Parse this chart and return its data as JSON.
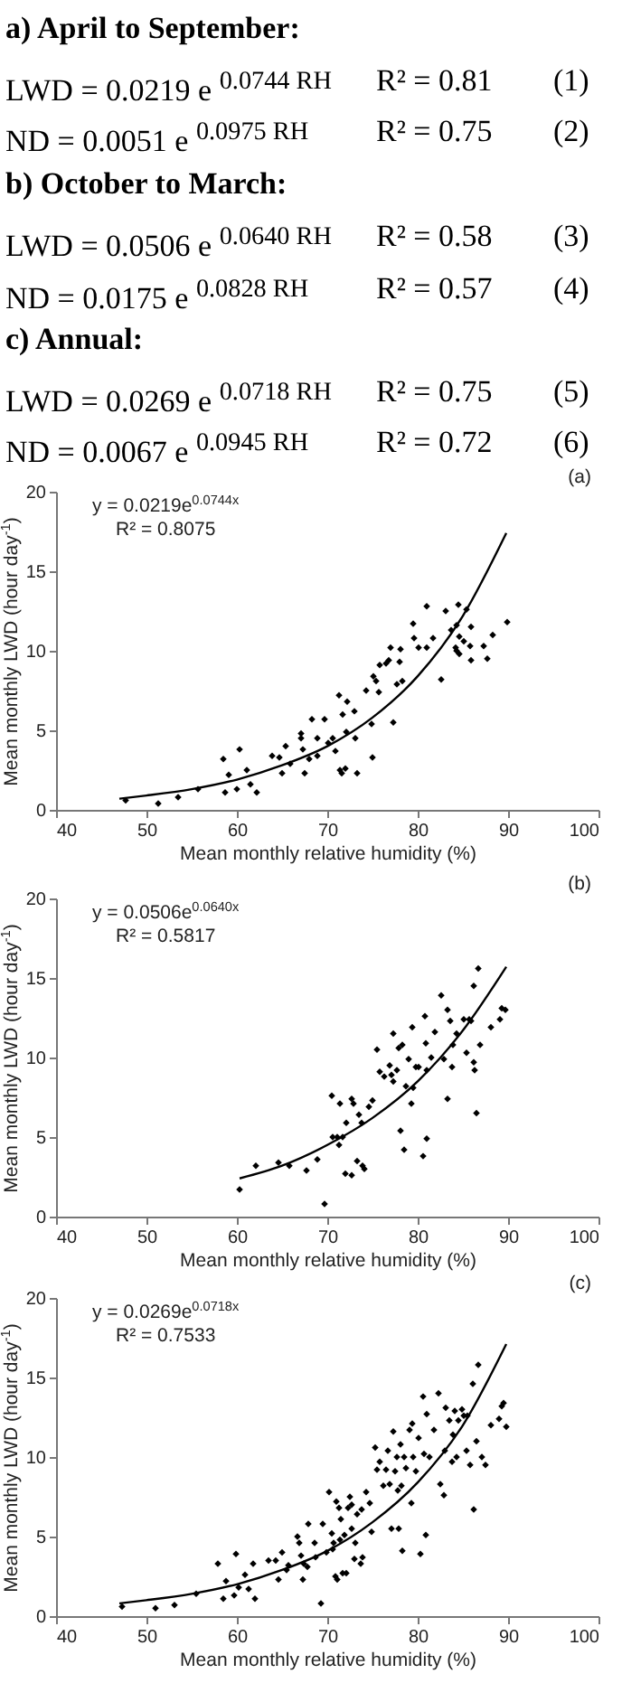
{
  "chart_data": [
    {
      "type": "other",
      "annotations": [
        "a) April to September:",
        "LWD = 0.0219 e $^{0.0744 RH}$",
        "R² = 0.81",
        "(1)",
        "ND = 0.0051 e $^{0.0975 RH}$",
        "R² = 0.75",
        "(2)",
        "b) October to March:",
        "LWD = 0.0506 e $^{0.0640 RH}$",
        "R² = 0.58",
        "(3)",
        "ND = 0.0175 e $^{0.0828 RH}$",
        "R² = 0.57",
        "(4)",
        "c) Annual:",
        "LWD = 0.0269 e $^{0.0718 RH}$",
        "R² = 0.75",
        "(5)",
        "ND = 0.0067 e $^{0.0945 RH}$",
        "R² = 0.72",
        "(6)"
      ]
    },
    {
      "type": "scatter",
      "xlabel": "Mean monthly relative humidity (%)",
      "ylabel": "Mean monthly LWD (hour day$^{-1}$)",
      "xlim": [
        40,
        100
      ],
      "xticks": [
        40,
        50,
        60,
        70,
        80,
        90,
        100
      ],
      "ylim": [
        0,
        20
      ],
      "yticks": [
        0,
        5,
        10,
        15,
        20
      ],
      "marker": "diamond",
      "annotations": [
        "y = 0.0219e$^{0.0744x}$",
        "R² = 0.8075",
        "(a)"
      ],
      "series": [
        {
          "type": "scatter",
          "color": "#000000",
          "x": [
            47.7,
            51.3,
            53.5,
            55.7,
            58.5,
            58.7,
            59.1,
            60,
            60.3,
            61.1,
            61.5,
            62.2,
            63.9,
            64.7,
            65,
            65.4,
            65.9,
            67.1,
            67.1,
            67.3,
            67.5,
            68,
            68.3,
            68.9,
            68.9,
            69.7,
            70.1,
            70.6,
            70.9,
            71.3,
            71.4,
            71.6,
            71.7,
            72,
            72.1,
            72.2,
            73,
            73.1,
            73.3,
            74.3,
            74.9,
            75,
            75.1,
            75.4,
            75.7,
            75.8,
            76.5,
            76.8,
            77,
            77.3,
            77.7,
            78,
            78.1,
            78.3,
            79.5,
            79.6,
            80.1,
            81,
            81,
            81.7,
            82.6,
            83.1,
            83.7,
            84.3,
            84.5,
            84.6,
            84.2,
            84.3,
            84.6,
            85.1,
            85.4,
            85.8,
            85.9,
            85.9,
            87.3,
            87.7,
            88.3,
            89.9
          ],
          "values": [
            0.6,
            0.4,
            0.8,
            1.3,
            3.2,
            1.1,
            2.2,
            1.3,
            3.8,
            2.5,
            1.6,
            1.1,
            3.4,
            3.3,
            2.3,
            4.0,
            2.9,
            4.5,
            4.8,
            3.8,
            2.3,
            3.2,
            5.7,
            4.5,
            3.4,
            5.7,
            4.2,
            4.5,
            3.7,
            7.2,
            2.5,
            2.3,
            6.0,
            2.6,
            4.9,
            6.8,
            6.2,
            4.5,
            2.3,
            7.5,
            5.4,
            3.3,
            8.4,
            8.1,
            7.4,
            9.1,
            9.2,
            9.4,
            10.2,
            5.5,
            7.9,
            9.3,
            10.1,
            8.1,
            11.7,
            10.8,
            10.2,
            12.8,
            10.2,
            10.8,
            8.2,
            12.5,
            11.3,
            11.6,
            12.9,
            10.9,
            10.2,
            10,
            9.8,
            10.6,
            12.6,
            10.3,
            11.5,
            9.4,
            10.3,
            9.5,
            11,
            11.8
          ]
        },
        {
          "type": "line",
          "color": "#000000",
          "marker": "none",
          "x": [
            47,
            50,
            55,
            60,
            65,
            70,
            75,
            80,
            85,
            89.8
          ],
          "values": [
            0.7,
            0.9,
            1.3,
            1.9,
            2.8,
            4.0,
            5.8,
            8.4,
            12.2,
            17.4
          ]
        }
      ]
    },
    {
      "type": "scatter",
      "xlabel": "Mean monthly relative humidity (%)",
      "ylabel": "Mean monthly LWD (hour day$^{-1}$)",
      "xlim": [
        40,
        100
      ],
      "xticks": [
        40,
        50,
        60,
        70,
        80,
        90,
        100
      ],
      "ylim": [
        0,
        20
      ],
      "yticks": [
        0,
        5,
        10,
        15,
        20
      ],
      "marker": "diamond",
      "annotations": [
        "y = 0.0506e$^{0.0640x}$",
        "R² = 0.5817",
        "(b)"
      ],
      "series": [
        {
          "type": "scatter",
          "color": "#000000",
          "x": [
            60.3,
            62.1,
            64.6,
            65.8,
            67.7,
            68.9,
            69.7,
            70.5,
            70.6,
            71.1,
            71.3,
            71.4,
            71.7,
            72,
            72.1,
            72.7,
            72.7,
            72.9,
            73.3,
            73.5,
            73.8,
            73.9,
            74.1,
            74.6,
            75,
            75.5,
            75.8,
            76.3,
            76.9,
            77.1,
            77.3,
            77.3,
            77.7,
            77.9,
            78.1,
            78.3,
            78.5,
            78.7,
            79,
            79.3,
            79.4,
            79.5,
            79.8,
            80.1,
            80.6,
            80.8,
            80.9,
            81,
            81,
            81.5,
            81.9,
            82.6,
            82.9,
            83.3,
            83.3,
            83.6,
            83.8,
            83.9,
            84.3,
            85.1,
            85.4,
            85.7,
            85.9,
            86.2,
            86.2,
            86.3,
            86.5,
            86.7,
            86.9,
            88.1,
            89.1,
            89.3,
            89.7
          ],
          "values": [
            1.7,
            3.2,
            3.4,
            3.2,
            2.9,
            3.6,
            0.8,
            7.6,
            5.0,
            5.0,
            4.5,
            7.1,
            5.0,
            2.7,
            5.9,
            2.6,
            7.4,
            7.1,
            3.5,
            6.4,
            5.9,
            3.2,
            3.0,
            6.9,
            7.3,
            10.5,
            9.1,
            8.8,
            9.5,
            8.9,
            8.5,
            11.5,
            9.2,
            10.6,
            5.4,
            10.8,
            4.2,
            8.2,
            9.9,
            7.1,
            11.9,
            8.1,
            9.4,
            9.4,
            3.8,
            12.6,
            10.9,
            4.9,
            9.2,
            10,
            11.6,
            13.9,
            9.9,
            13,
            7.4,
            12.3,
            9.4,
            10.8,
            11.5,
            12.4,
            10.3,
            12.4,
            12.3,
            9.7,
            14.5,
            9.2,
            6.5,
            15.6,
            10.8,
            11.9,
            12.4,
            13.1,
            13
          ]
        },
        {
          "type": "line",
          "color": "#000000",
          "marker": "none",
          "x": [
            60.3,
            65,
            70,
            75,
            80,
            85,
            89.8
          ],
          "values": [
            2.4,
            3.2,
            4.5,
            6.2,
            8.5,
            11.7,
            15.7
          ]
        }
      ]
    },
    {
      "type": "scatter",
      "xlabel": "Mean monthly relative humidity (%)",
      "ylabel": "Mean monthly LWD (hour day$^{-1}$)",
      "xlim": [
        40,
        100
      ],
      "xticks": [
        40,
        50,
        60,
        70,
        80,
        90,
        100
      ],
      "ylim": [
        0,
        20
      ],
      "yticks": [
        0,
        5,
        10,
        15,
        20
      ],
      "marker": "diamond",
      "annotations": [
        "y = 0.0269e$^{0.0718x}$",
        "R² = 0.7533",
        "(c)"
      ],
      "series": [
        {
          "type": "scatter",
          "color": "#000000",
          "x": [
            47.3,
            51,
            53.1,
            55.5,
            57.9,
            58.5,
            58.8,
            59.7,
            59.9,
            60.2,
            60.9,
            61.3,
            61.8,
            62,
            63.5,
            64.3,
            64.6,
            65,
            65.5,
            65.7,
            66.7,
            66.9,
            67.1,
            67.3,
            67.4,
            67.8,
            67.9,
            68.6,
            68.7,
            69.3,
            69.5,
            69.9,
            70.2,
            70.5,
            70.6,
            70.7,
            70.9,
            71,
            71.1,
            71.3,
            71.4,
            71.5,
            71.7,
            71.9,
            72.1,
            72.3,
            72.5,
            72.7,
            72.7,
            73,
            73.1,
            73.3,
            73.7,
            73.8,
            73.9,
            74.3,
            74.7,
            74.9,
            75.3,
            75.5,
            75.8,
            76.2,
            76.5,
            76.7,
            76.9,
            77.1,
            77.3,
            77.5,
            77.7,
            77.8,
            77.9,
            78.1,
            78.2,
            78.3,
            78.5,
            78.7,
            79.1,
            79.3,
            79.4,
            79.5,
            79.8,
            80.1,
            80.3,
            80.6,
            80.7,
            80.9,
            81,
            81.3,
            81.8,
            82.3,
            82.5,
            82.9,
            83,
            83.1,
            83.5,
            83.8,
            83.9,
            84.1,
            84.3,
            84.5,
            84.9,
            85.1,
            85.4,
            85.5,
            85.8,
            86.1,
            86.2,
            86.5,
            86.7,
            87.1,
            87.5,
            88.1,
            89,
            89.3,
            89.5,
            89.8
          ],
          "values": [
            0.6,
            0.5,
            0.7,
            1.4,
            3.3,
            1.1,
            2.2,
            1.3,
            3.9,
            1.8,
            2.6,
            1.7,
            3.3,
            1.1,
            3.5,
            3.5,
            2.3,
            4.0,
            2.9,
            3.2,
            5.0,
            4.6,
            3.8,
            2.3,
            3.3,
            3.1,
            5.8,
            4.6,
            3.7,
            0.8,
            5.8,
            4.0,
            7.8,
            5.2,
            4.2,
            4.6,
            2.5,
            7.2,
            2.3,
            6.8,
            4.8,
            6.1,
            2.7,
            5.1,
            2.7,
            6.8,
            7.5,
            7.0,
            5.5,
            3.6,
            4.6,
            6.4,
            3.3,
            6.7,
            3.7,
            7.8,
            7.1,
            5.3,
            10.6,
            9.2,
            9.7,
            8.2,
            9.2,
            10.4,
            8.3,
            5.5,
            11.6,
            9.1,
            10,
            7.9,
            5.5,
            10.8,
            8.2,
            4.1,
            10,
            9.3,
            11.7,
            7.1,
            12.1,
            10,
            9.1,
            11.2,
            3.9,
            13.8,
            10.2,
            5.1,
            12.7,
            10,
            11.7,
            14,
            8.3,
            7.6,
            10.4,
            13.1,
            12.3,
            9.7,
            11.4,
            12.9,
            10,
            12.3,
            13,
            12.6,
            10.4,
            12.6,
            9.5,
            14.6,
            6.7,
            11,
            15.8,
            10,
            9.5,
            12,
            12.4,
            13.2,
            13.4,
            11.9
          ]
        },
        {
          "type": "line",
          "color": "#000000",
          "marker": "none",
          "x": [
            47,
            50,
            55,
            60,
            65,
            70,
            75,
            80,
            85,
            89.8
          ],
          "values": [
            0.8,
            1.0,
            1.4,
            2.0,
            2.9,
            4.1,
            5.9,
            8.4,
            12.0,
            17.1
          ]
        }
      ]
    }
  ]
}
